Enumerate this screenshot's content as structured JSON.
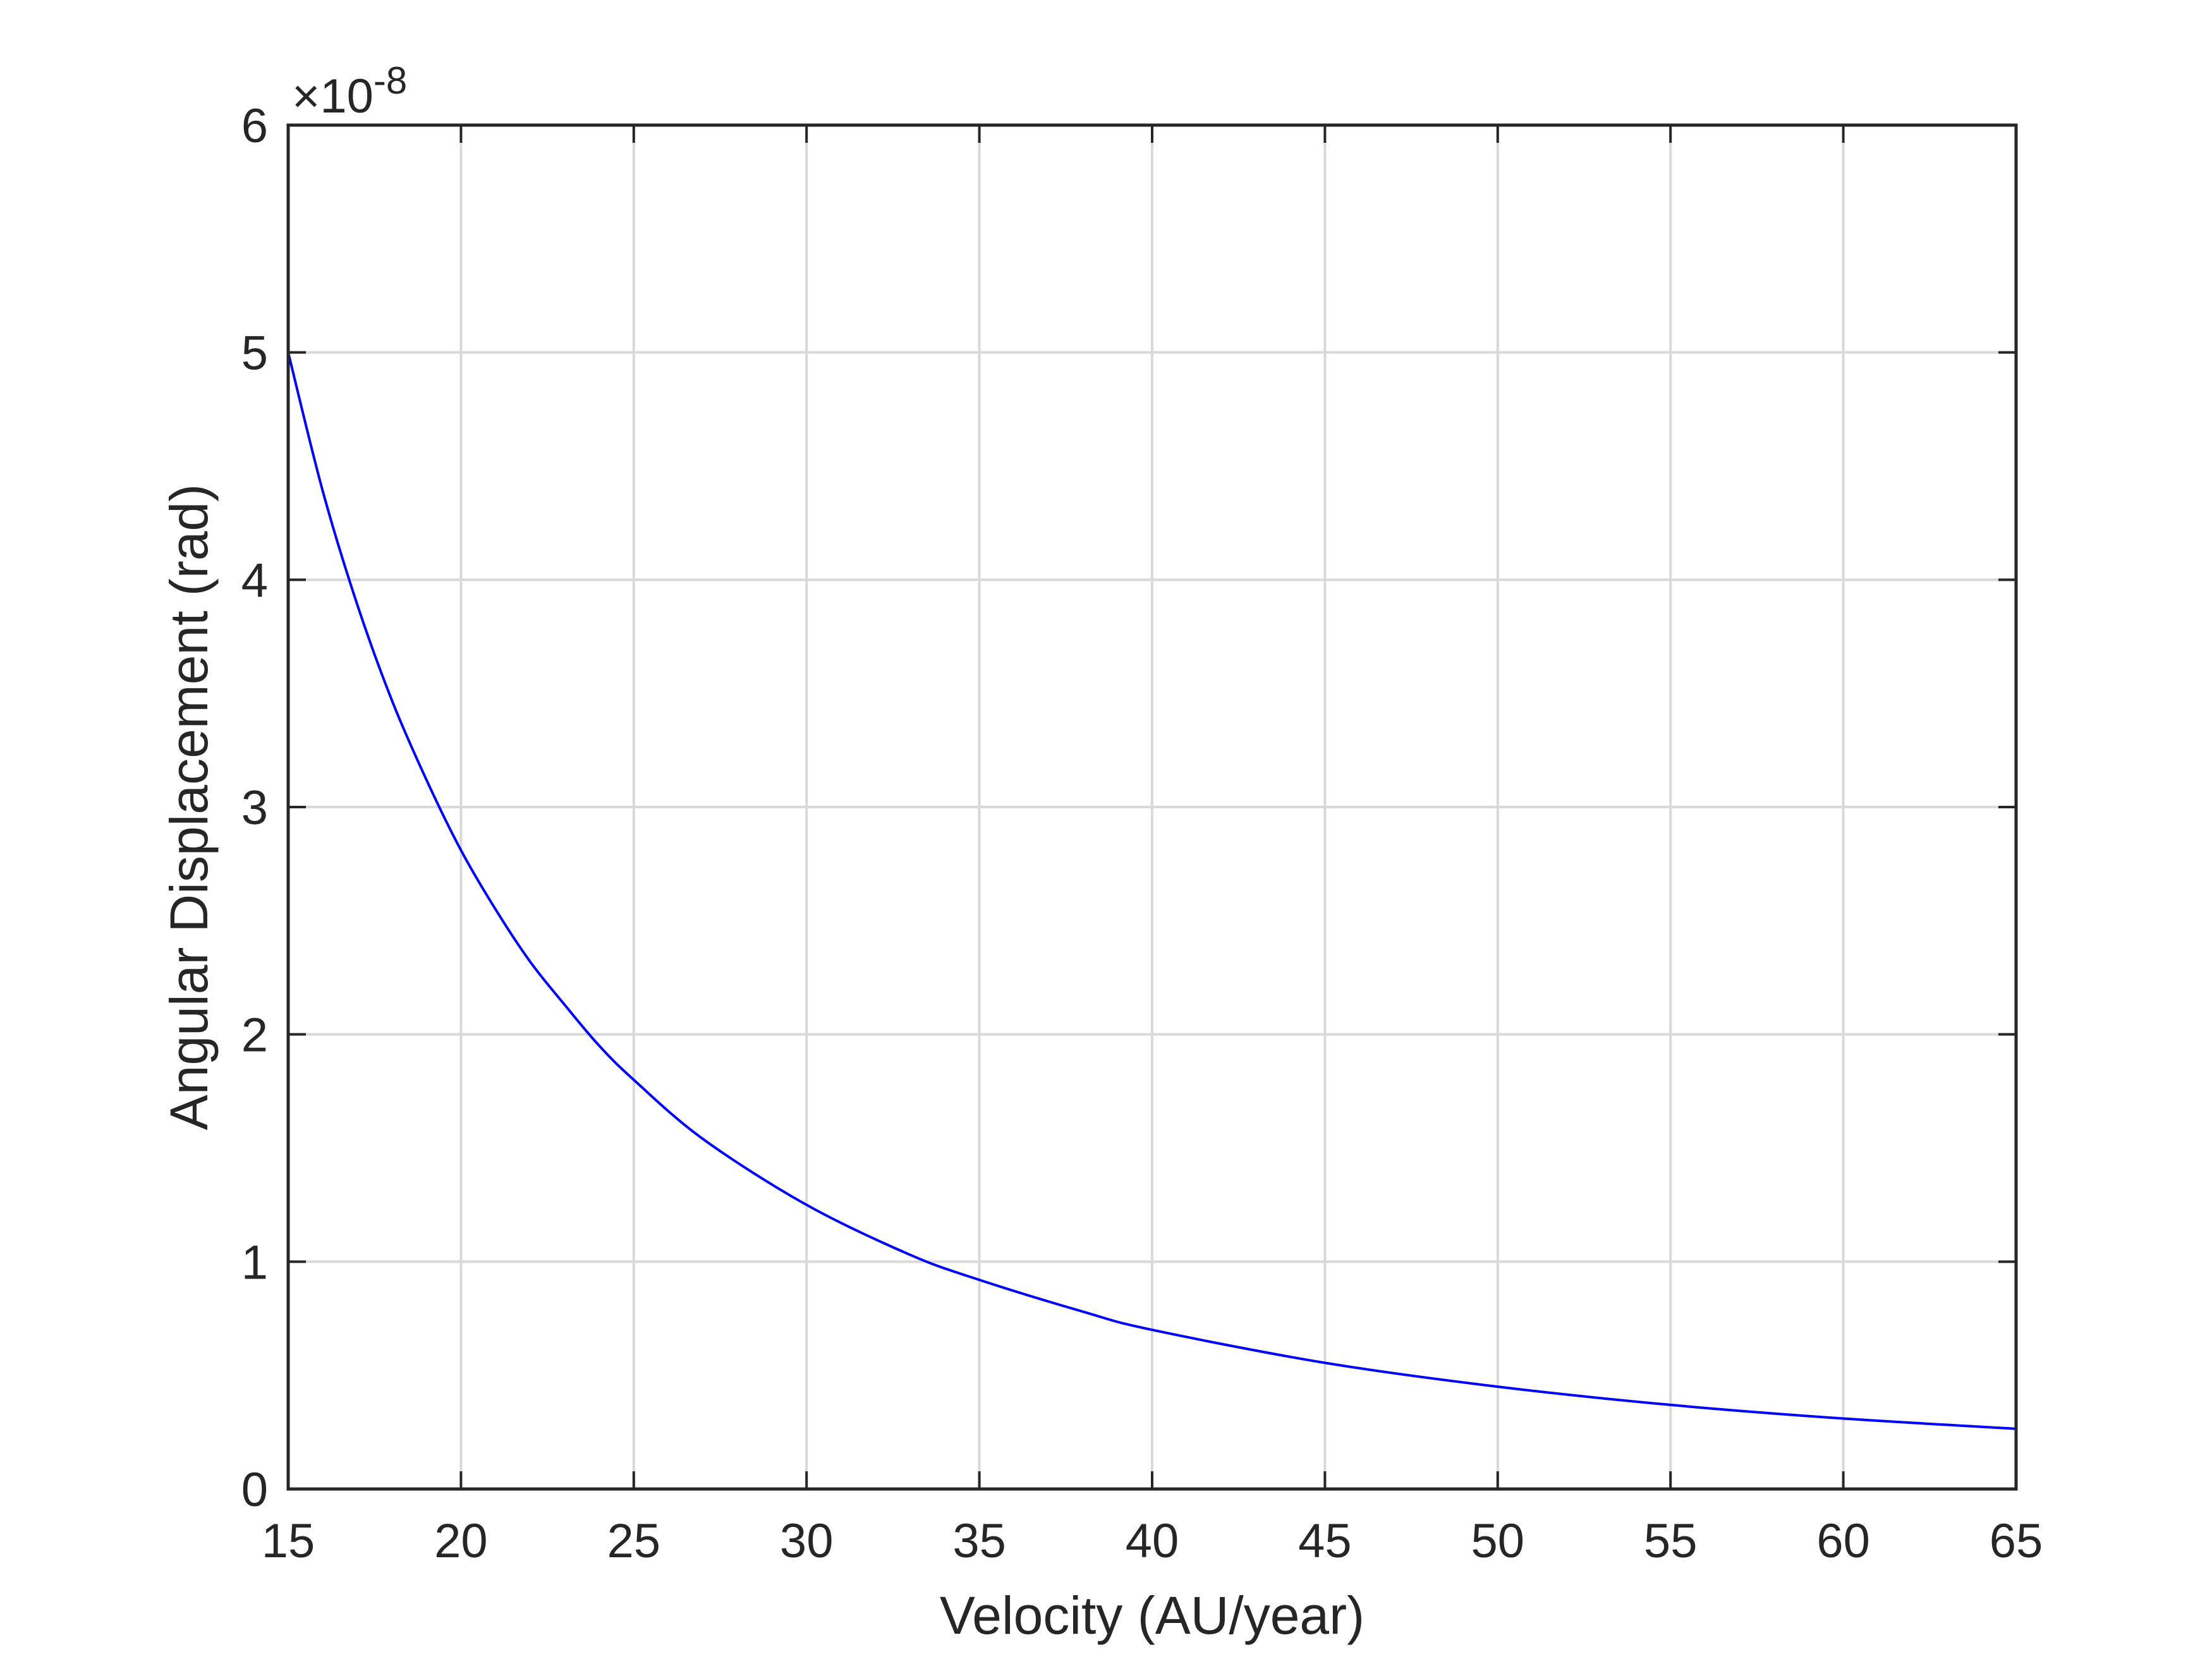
{
  "chart_data": {
    "type": "line",
    "title": "",
    "xlabel": "Velocity (AU/year)",
    "ylabel": "Angular Displacement (rad)",
    "xlim": [
      15,
      65
    ],
    "ylim": [
      0,
      6e-08
    ],
    "xticks": [
      15,
      20,
      25,
      30,
      35,
      40,
      45,
      50,
      55,
      60,
      65
    ],
    "yticks": [
      0,
      1,
      2,
      3,
      4,
      5,
      6
    ],
    "y_exponent_label": "×10",
    "y_exponent_power": "-8",
    "grid": true,
    "legend": "none",
    "series": [
      {
        "color": "#0000ff",
        "x": [
          15,
          16,
          17,
          18,
          19,
          20,
          21,
          22,
          23,
          24,
          25,
          27,
          30,
          33,
          35,
          38,
          40,
          45,
          50,
          55,
          60,
          65
        ],
        "y": [
          5e-08,
          4.39e-08,
          3.89e-08,
          3.47e-08,
          3.12e-08,
          2.81e-08,
          2.55e-08,
          2.32e-08,
          2.13e-08,
          1.95e-08,
          1.8e-08,
          1.54e-08,
          1.25e-08,
          1.03e-08,
          9.2e-09,
          7.8e-09,
          7e-09,
          5.55e-09,
          4.5e-09,
          3.7e-09,
          3.1e-09,
          2.65e-09
        ]
      }
    ]
  }
}
